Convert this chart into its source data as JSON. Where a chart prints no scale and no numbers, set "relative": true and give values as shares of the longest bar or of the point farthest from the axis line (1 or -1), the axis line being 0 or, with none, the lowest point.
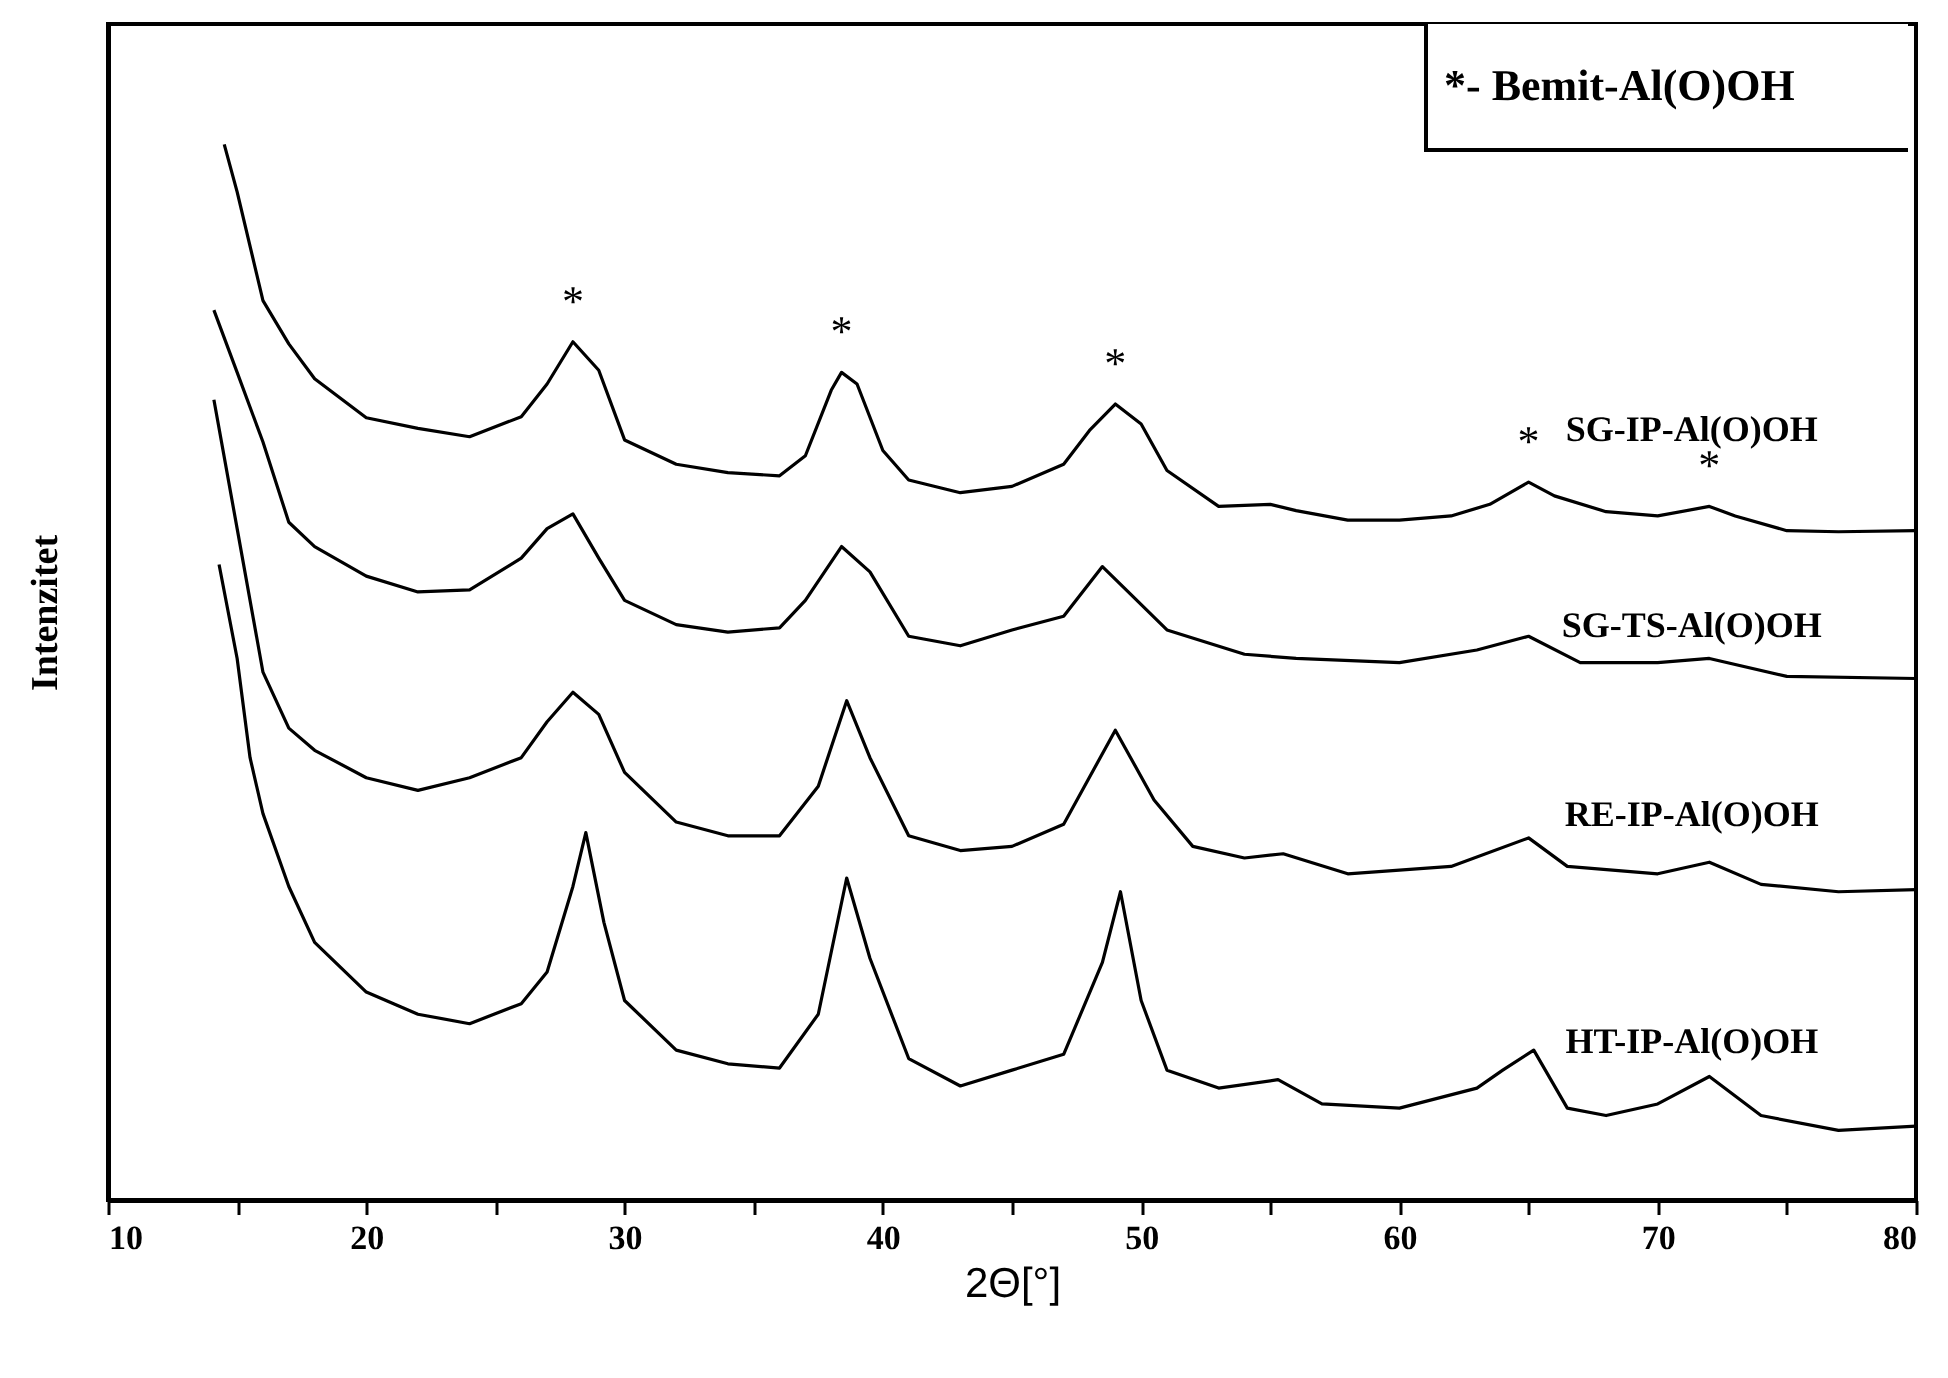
{
  "chart_data": {
    "type": "line",
    "xlabel": "2Θ[°]",
    "ylabel": "Intenzitet",
    "relative": true,
    "tick_labels": "x",
    "marker": "none",
    "line_style": "solid",
    "xlim": [
      10,
      80
    ],
    "xticks": [
      10,
      {
        "value": 15,
        "label": null
      },
      20,
      {
        "value": 25,
        "label": null
      },
      30,
      {
        "value": 35,
        "label": null
      },
      40,
      {
        "value": 45,
        "label": null
      },
      50,
      {
        "value": 55,
        "label": null
      },
      60,
      {
        "value": 65,
        "label": null
      },
      70,
      {
        "value": 75,
        "label": null
      },
      80
    ],
    "annotations": [
      "*- Bemit-Al(O)OH",
      {
        "text": "*",
        "x": 28,
        "y": 0.813
      },
      {
        "text": "*",
        "x": 38.4,
        "y": 0.784
      },
      {
        "text": "*",
        "x": 49,
        "y": 0.754
      },
      {
        "text": "*",
        "x": 65,
        "y": 0.68
      },
      {
        "text": "*",
        "x": 72,
        "y": 0.657
      }
    ],
    "series": [
      {
        "name": "SG-IP-Al(O)OH",
        "color": "#000000",
        "x": [
          14.5,
          15,
          16,
          17,
          18,
          20,
          22,
          24,
          26,
          27,
          28,
          29,
          30,
          32,
          34,
          36,
          37,
          38,
          38.4,
          39,
          40,
          41,
          43,
          45,
          47,
          48,
          49,
          50,
          51,
          53,
          55,
          56,
          58,
          60,
          62,
          63.5,
          65,
          66,
          68,
          70,
          72,
          73,
          75,
          77,
          80
        ],
        "values": [
          1.0,
          0.955,
          0.852,
          0.811,
          0.778,
          0.741,
          0.731,
          0.723,
          0.742,
          0.773,
          0.813,
          0.786,
          0.72,
          0.697,
          0.689,
          0.686,
          0.705,
          0.767,
          0.784,
          0.773,
          0.71,
          0.682,
          0.67,
          0.676,
          0.697,
          0.729,
          0.754,
          0.735,
          0.691,
          0.657,
          0.659,
          0.653,
          0.644,
          0.644,
          0.648,
          0.659,
          0.68,
          0.667,
          0.652,
          0.648,
          0.657,
          0.648,
          0.634,
          0.633,
          0.634
        ]
      },
      {
        "name": "SG-TS-Al(O)OH",
        "color": "#000000",
        "x": [
          14.1,
          15,
          16,
          17,
          18,
          20,
          22,
          24,
          26,
          27,
          28,
          29,
          30,
          32,
          34,
          36,
          37,
          38.4,
          39.5,
          41,
          43,
          45,
          47,
          48.5,
          49.5,
          51,
          54,
          56,
          60,
          63,
          65,
          67,
          70,
          72,
          75,
          80
        ],
        "values": [
          0.843,
          0.784,
          0.718,
          0.642,
          0.619,
          0.591,
          0.576,
          0.578,
          0.608,
          0.636,
          0.65,
          0.608,
          0.568,
          0.545,
          0.538,
          0.542,
          0.568,
          0.619,
          0.595,
          0.534,
          0.525,
          0.54,
          0.553,
          0.6,
          0.576,
          0.54,
          0.517,
          0.513,
          0.509,
          0.521,
          0.534,
          0.509,
          0.509,
          0.513,
          0.496,
          0.494
        ]
      },
      {
        "name": "RE-IP-Al(O)OH",
        "color": "#000000",
        "x": [
          14.1,
          15,
          16,
          17,
          18,
          20,
          22,
          24,
          26,
          27,
          28,
          29,
          30,
          32,
          34,
          36,
          37.5,
          38.6,
          39.5,
          41,
          43,
          45,
          47,
          49,
          50.5,
          52,
          54,
          55.5,
          58,
          62,
          65,
          66.5,
          70,
          72,
          74,
          77,
          80
        ],
        "values": [
          0.758,
          0.636,
          0.5,
          0.447,
          0.426,
          0.4,
          0.388,
          0.4,
          0.419,
          0.453,
          0.481,
          0.46,
          0.405,
          0.358,
          0.345,
          0.345,
          0.392,
          0.473,
          0.419,
          0.345,
          0.331,
          0.335,
          0.356,
          0.445,
          0.379,
          0.335,
          0.324,
          0.328,
          0.309,
          0.316,
          0.343,
          0.316,
          0.309,
          0.32,
          0.299,
          0.292,
          0.294
        ]
      },
      {
        "name": "HT-IP-Al(O)OH",
        "color": "#000000",
        "x": [
          14.3,
          15,
          15.5,
          16,
          17,
          18,
          20,
          22,
          24,
          26,
          27,
          28,
          28.5,
          29.2,
          30,
          32,
          34,
          36,
          37.5,
          38.6,
          39.5,
          41,
          43,
          45,
          47,
          48.5,
          49.2,
          50,
          51,
          53,
          55.3,
          57,
          60,
          63,
          64,
          65.2,
          66.5,
          68,
          70,
          72,
          74,
          77,
          80
        ],
        "values": [
          0.602,
          0.513,
          0.419,
          0.366,
          0.297,
          0.244,
          0.197,
          0.176,
          0.167,
          0.186,
          0.216,
          0.297,
          0.348,
          0.263,
          0.189,
          0.142,
          0.129,
          0.125,
          0.176,
          0.305,
          0.229,
          0.134,
          0.108,
          0.123,
          0.138,
          0.225,
          0.292,
          0.189,
          0.123,
          0.106,
          0.114,
          0.091,
          0.087,
          0.106,
          0.123,
          0.142,
          0.087,
          0.08,
          0.091,
          0.117,
          0.08,
          0.066,
          0.07
        ]
      }
    ]
  }
}
